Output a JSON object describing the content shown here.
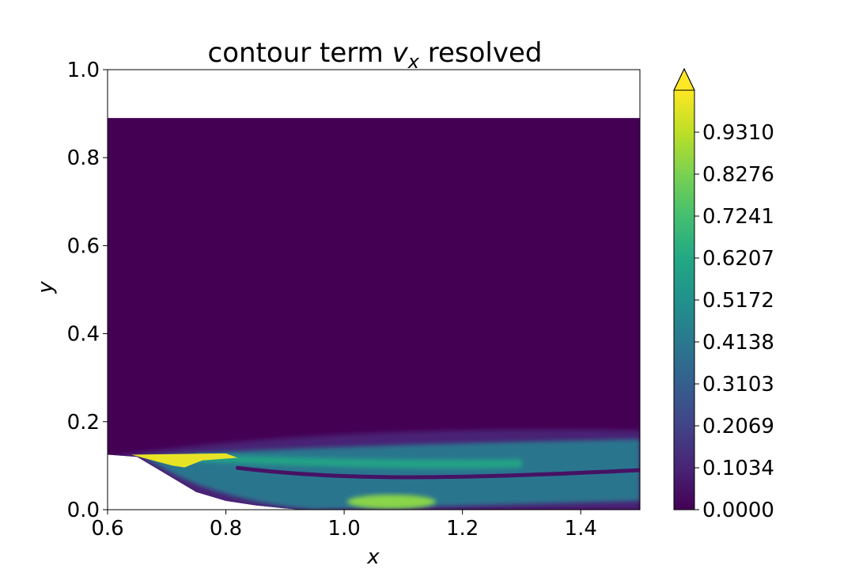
{
  "chart_data": {
    "type": "filled-contour",
    "title": "contour term v_x resolved",
    "title_parts": {
      "prefix": "contour term ",
      "var": "v",
      "sub": "x",
      "suffix": " resolved"
    },
    "xlabel": "x",
    "ylabel": "y",
    "xlim": [
      0.6,
      1.5
    ],
    "ylim": [
      0.0,
      1.0
    ],
    "x_ticks": [
      0.6,
      0.8,
      1.0,
      1.2,
      1.4
    ],
    "x_tick_labels": [
      "0.6",
      "0.8",
      "1.0",
      "1.2",
      "1.4"
    ],
    "y_ticks": [
      0.0,
      0.2,
      0.4,
      0.6,
      0.8,
      1.0
    ],
    "y_tick_labels": [
      "0.0",
      "0.2",
      "0.4",
      "0.6",
      "0.8",
      "1.0"
    ],
    "colormap": "viridis",
    "colorbar": {
      "min": 0.0,
      "max": 1.0345,
      "extend": "max",
      "ticks": [
        0.0,
        0.1034,
        0.2069,
        0.3103,
        0.4138,
        0.5172,
        0.6207,
        0.7241,
        0.8276,
        0.931
      ],
      "tick_labels": [
        "0.0000",
        "0.1034",
        "0.2069",
        "0.3103",
        "0.4138",
        "0.5172",
        "0.6207",
        "0.7241",
        "0.8276",
        "0.9310"
      ],
      "levels": 30
    },
    "domain": {
      "top_y": 0.89,
      "inlet_wall_y_at_x0": 0.125,
      "bottom_wall": [
        [
          0.6,
          0.125
        ],
        [
          0.65,
          0.12
        ],
        [
          0.7,
          0.08
        ],
        [
          0.75,
          0.04
        ],
        [
          0.8,
          0.02
        ],
        [
          0.85,
          0.01
        ],
        [
          0.9,
          0.003
        ],
        [
          0.93,
          0.0
        ],
        [
          1.5,
          0.0
        ]
      ]
    },
    "regions": [
      {
        "name": "background",
        "value": 0.0
      },
      {
        "name": "shear-layer-fringe",
        "value": 0.1,
        "x": [
          0.6,
          1.5
        ],
        "y_upper": [
          0.2,
          0.18
        ]
      },
      {
        "name": "shear-layer",
        "value": 0.4,
        "x": [
          0.65,
          1.5
        ],
        "y_range": [
          0.02,
          0.16
        ]
      },
      {
        "name": "inlet-lip-jet",
        "value": 1.0,
        "x": [
          0.65,
          0.8
        ],
        "y_range": [
          0.09,
          0.13
        ]
      },
      {
        "name": "near-wall-hotspot",
        "value": 0.85,
        "x": [
          1.0,
          1.15
        ],
        "y_range": [
          0.0,
          0.03
        ]
      },
      {
        "name": "low-valley-line",
        "value": 0.05,
        "x": [
          0.85,
          1.5
        ],
        "y": [
          0.07,
          0.09
        ]
      }
    ]
  }
}
